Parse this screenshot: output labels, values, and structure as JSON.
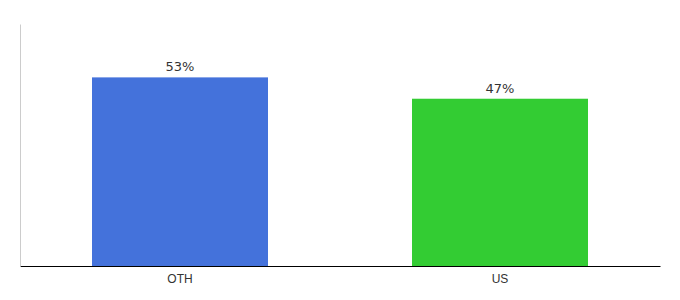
{
  "chart_data": {
    "type": "bar",
    "categories": [
      "OTH",
      "US"
    ],
    "values": [
      53,
      47
    ],
    "colors": [
      "#4472db",
      "#33cc33"
    ],
    "value_labels": [
      "53%",
      "47%"
    ],
    "data_labels": true,
    "ylim": [
      0,
      68
    ],
    "tick_labels": "x",
    "grid": false
  }
}
